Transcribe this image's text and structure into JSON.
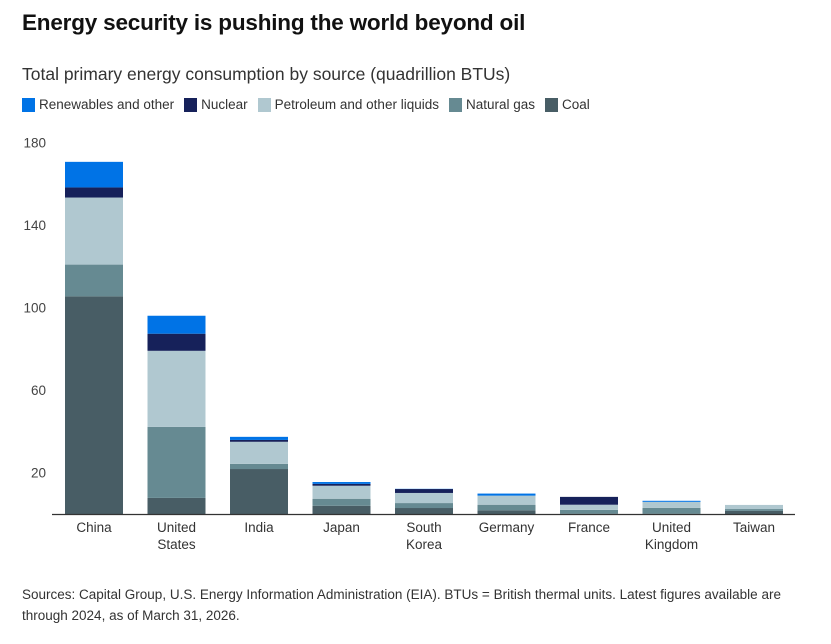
{
  "header": {
    "title": "Energy security is pushing the world beyond oil",
    "subtitle": "Total primary energy consumption by source (quadrillion BTUs)"
  },
  "legend": [
    {
      "label": "Renewables and other",
      "color": "#0073E6"
    },
    {
      "label": "Nuclear",
      "color": "#16215A"
    },
    {
      "label": "Petroleum and other liquids",
      "color": "#B0C8D0"
    },
    {
      "label": "Natural gas",
      "color": "#668A92"
    },
    {
      "label": "Coal",
      "color": "#485D65"
    }
  ],
  "footer": {
    "text": "Sources: Capital Group, U.S. Energy Information Administration (EIA). BTUs = British thermal units. Latest figures available are through 2024, as of March 31, 2026."
  },
  "chart_data": {
    "type": "bar",
    "stacked": true,
    "title": "Energy security is pushing the world beyond oil",
    "subtitle": "Total primary energy consumption by source (quadrillion BTUs)",
    "xlabel": "",
    "ylabel": "",
    "ylim": [
      0,
      180
    ],
    "yticks": [
      20,
      60,
      100,
      140,
      180
    ],
    "grid": false,
    "legend_position": "top-left",
    "categories": [
      [
        "China"
      ],
      [
        "United",
        "States"
      ],
      [
        "India"
      ],
      [
        "Japan"
      ],
      [
        "South",
        "Korea"
      ],
      [
        "Germany"
      ],
      [
        "France"
      ],
      [
        "United",
        "Kingdom"
      ],
      [
        "Taiwan"
      ]
    ],
    "series": [
      {
        "name": "Coal",
        "color": "#485D65",
        "values": [
          105.5,
          7.8,
          21.8,
          4.0,
          2.9,
          1.8,
          0.1,
          0.1,
          1.5
        ]
      },
      {
        "name": "Natural gas",
        "color": "#668A92",
        "values": [
          15.4,
          34.4,
          2.5,
          3.4,
          2.4,
          2.7,
          1.9,
          2.9,
          0.9
        ]
      },
      {
        "name": "Petroleum and other liquids",
        "color": "#B0C8D0",
        "values": [
          32.5,
          36.9,
          10.7,
          6.3,
          4.9,
          4.4,
          2.5,
          2.9,
          2.0
        ]
      },
      {
        "name": "Nuclear",
        "color": "#16215A",
        "values": [
          4.9,
          8.3,
          0.9,
          0.9,
          1.9,
          0.0,
          3.8,
          0.0,
          0.0
        ]
      },
      {
        "name": "Renewables and other",
        "color": "#0073E6",
        "values": [
          12.4,
          8.7,
          1.5,
          0.9,
          0.1,
          1.0,
          0.0,
          0.5,
          0.0
        ]
      }
    ]
  }
}
